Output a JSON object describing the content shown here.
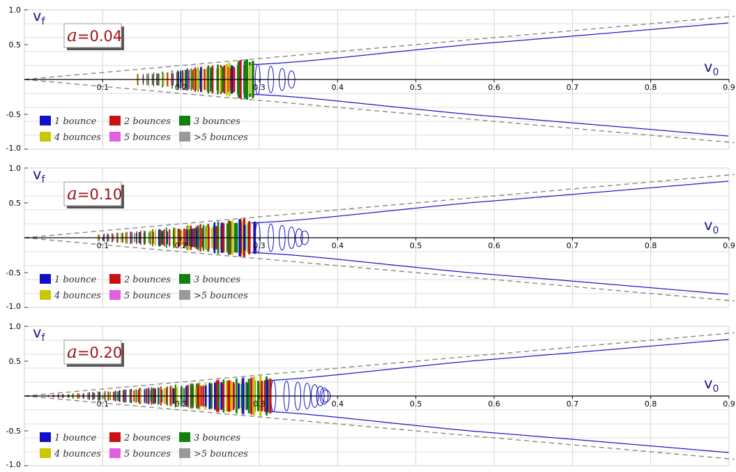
{
  "chart_data": [
    {
      "type": "line",
      "annotation": {
        "symbol": "a",
        "text": "=0.04"
      },
      "a": 0.04,
      "xlabel": {
        "main": "v",
        "sub": "0"
      },
      "ylabel": {
        "main": "v",
        "sub": "f"
      },
      "xlim": [
        0.0,
        0.9
      ],
      "ylim": [
        -1.0,
        1.0
      ],
      "xticks": [
        "0.1",
        "0.2",
        "0.3",
        "0.4",
        "0.5",
        "0.6",
        "0.7",
        "0.8",
        "0.9"
      ],
      "yticks": [
        "1.0",
        "0.5",
        "-0.5",
        "-1.0"
      ],
      "bounce_region": {
        "x_start": 0.145,
        "x_end": 0.29
      },
      "legend": {
        "placement": "bottom-left",
        "items": [
          {
            "label": "1 bounce",
            "color": "#1010cc"
          },
          {
            "label": "2 bounces",
            "color": "#cc1010"
          },
          {
            "label": "3 bounces",
            "color": "#108010"
          },
          {
            "label": "4 bounces",
            "color": "#c8c800"
          },
          {
            "label": "5 bounces",
            "color": "#e060e0"
          },
          {
            "label": ">5 bounces",
            "color": "#999999"
          }
        ]
      },
      "envelope": {
        "slope": 1.0,
        "style": "dashed"
      },
      "grid": true
    },
    {
      "type": "line",
      "annotation": {
        "symbol": "a",
        "text": "=0.10"
      },
      "a": 0.1,
      "xlabel": {
        "main": "v",
        "sub": "0"
      },
      "ylabel": {
        "main": "v",
        "sub": "f"
      },
      "xlim": [
        0.0,
        0.9
      ],
      "ylim": [
        -1.0,
        1.0
      ],
      "xticks": [
        "0.1",
        "0.2",
        "0.3",
        "0.4",
        "0.5",
        "0.6",
        "0.7",
        "0.8",
        "0.9"
      ],
      "yticks": [
        "1.0",
        "0.5",
        "-0.5",
        "-1.0"
      ],
      "bounce_region": {
        "x_start": 0.095,
        "x_end": 0.29
      },
      "legend": {
        "placement": "bottom-left",
        "items": [
          {
            "label": "1 bounce",
            "color": "#1010cc"
          },
          {
            "label": "2 bounces",
            "color": "#cc1010"
          },
          {
            "label": "3 bounces",
            "color": "#108010"
          },
          {
            "label": "4 bounces",
            "color": "#c8c800"
          },
          {
            "label": "5 bounces",
            "color": "#e060e0"
          },
          {
            "label": ">5 bounces",
            "color": "#999999"
          }
        ]
      },
      "envelope": {
        "slope": 1.0,
        "style": "dashed"
      },
      "grid": true
    },
    {
      "type": "line",
      "annotation": {
        "symbol": "a",
        "text": "=0.20"
      },
      "a": 0.2,
      "xlabel": {
        "main": "v",
        "sub": "0"
      },
      "ylabel": {
        "main": "v",
        "sub": "f"
      },
      "xlim": [
        0.0,
        0.9
      ],
      "ylim": [
        -1.0,
        1.0
      ],
      "xticks": [
        "0.1",
        "0.2",
        "0.3",
        "0.4",
        "0.5",
        "0.6",
        "0.7",
        "0.8",
        "0.9"
      ],
      "yticks": [
        "1.0",
        "0.5",
        "-0.5",
        "-1.0"
      ],
      "bounce_region": {
        "x_start": 0.03,
        "x_end": 0.31
      },
      "legend": {
        "placement": "bottom-left",
        "items": [
          {
            "label": "1 bounce",
            "color": "#1010cc"
          },
          {
            "label": "2 bounces",
            "color": "#cc1010"
          },
          {
            "label": "3 bounces",
            "color": "#108010"
          },
          {
            "label": "4 bounces",
            "color": "#c8c800"
          },
          {
            "label": "5 bounces",
            "color": "#e060e0"
          },
          {
            "label": ">5 bounces",
            "color": "#999999"
          }
        ]
      },
      "envelope": {
        "slope": 1.0,
        "style": "dashed"
      },
      "grid": true
    }
  ]
}
